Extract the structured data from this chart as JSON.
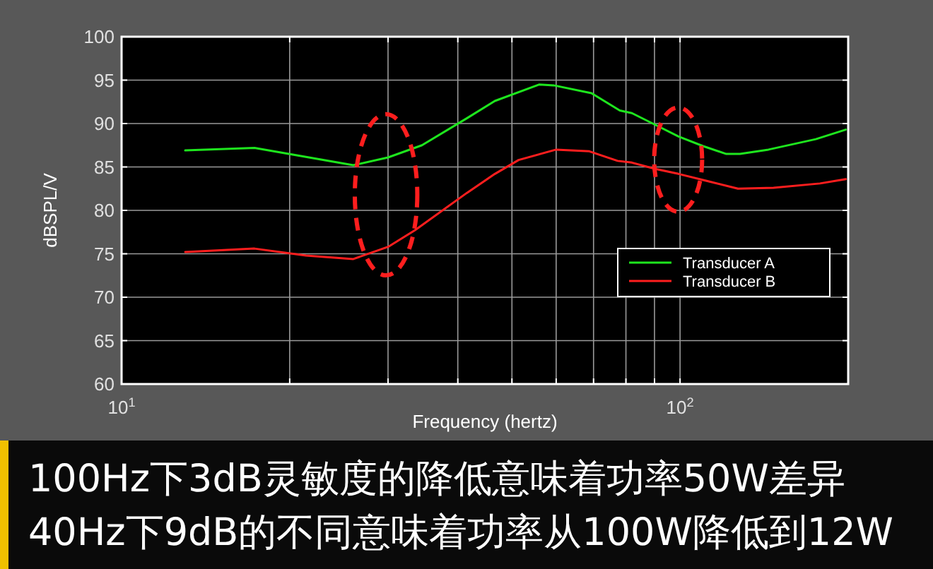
{
  "chart_data": {
    "type": "line",
    "xlabel": "Frequency (hertz)",
    "ylabel": "dBSPL/V",
    "log": "x",
    "xlim": [
      10,
      200
    ],
    "xticks": [
      {
        "value": 10,
        "label": "10$^{1}$"
      },
      {
        "value": 20,
        "label": null
      },
      {
        "value": 30,
        "label": null
      },
      {
        "value": 40,
        "label": null
      },
      {
        "value": 50,
        "label": null
      },
      {
        "value": 60,
        "label": null
      },
      {
        "value": 70,
        "label": null
      },
      {
        "value": 80,
        "label": null
      },
      {
        "value": 90,
        "label": null
      },
      {
        "value": 100,
        "label": "10$^{2}$"
      },
      {
        "value": 200,
        "label": null
      }
    ],
    "ylim": [
      60,
      100
    ],
    "yticks": [
      60,
      65,
      70,
      75,
      80,
      85,
      90,
      95,
      100
    ],
    "grid": true,
    "legend": "bottom right",
    "series": [
      {
        "name": "Transducer A",
        "color": "#1ee61e",
        "x": [
          13,
          17.3,
          26,
          30,
          34.5,
          41.5,
          46.6,
          56,
          59.4,
          69.4,
          78,
          82,
          90,
          99.4,
          110,
          121,
          128,
          144,
          175,
          198
        ],
        "values": [
          86.9,
          87.2,
          85.2,
          86.1,
          87.5,
          90.6,
          92.6,
          94.5,
          94.4,
          93.5,
          91.5,
          91.2,
          89.9,
          88.5,
          87.4,
          86.5,
          86.5,
          87,
          88.2,
          89.3
        ]
      },
      {
        "name": "Transducer B",
        "color": "#ff1e1e",
        "x": [
          13,
          17.3,
          21.4,
          26,
          30,
          33.5,
          41.5,
          46.6,
          51.4,
          60,
          68.8,
          77.3,
          82,
          90,
          99.4,
          110,
          127,
          147,
          178,
          198
        ],
        "values": [
          75.2,
          75.6,
          74.8,
          74.4,
          75.8,
          77.7,
          82,
          84.2,
          85.8,
          87,
          86.8,
          85.7,
          85.5,
          84.8,
          84.2,
          83.5,
          82.5,
          82.6,
          83.1,
          83.6
        ]
      }
    ],
    "annotations": [
      "100Hz下3dB灵敏度的降低意味着功率50W差异",
      "40Hz下9dB的不同意味着功率从100W降低到12W"
    ]
  }
}
